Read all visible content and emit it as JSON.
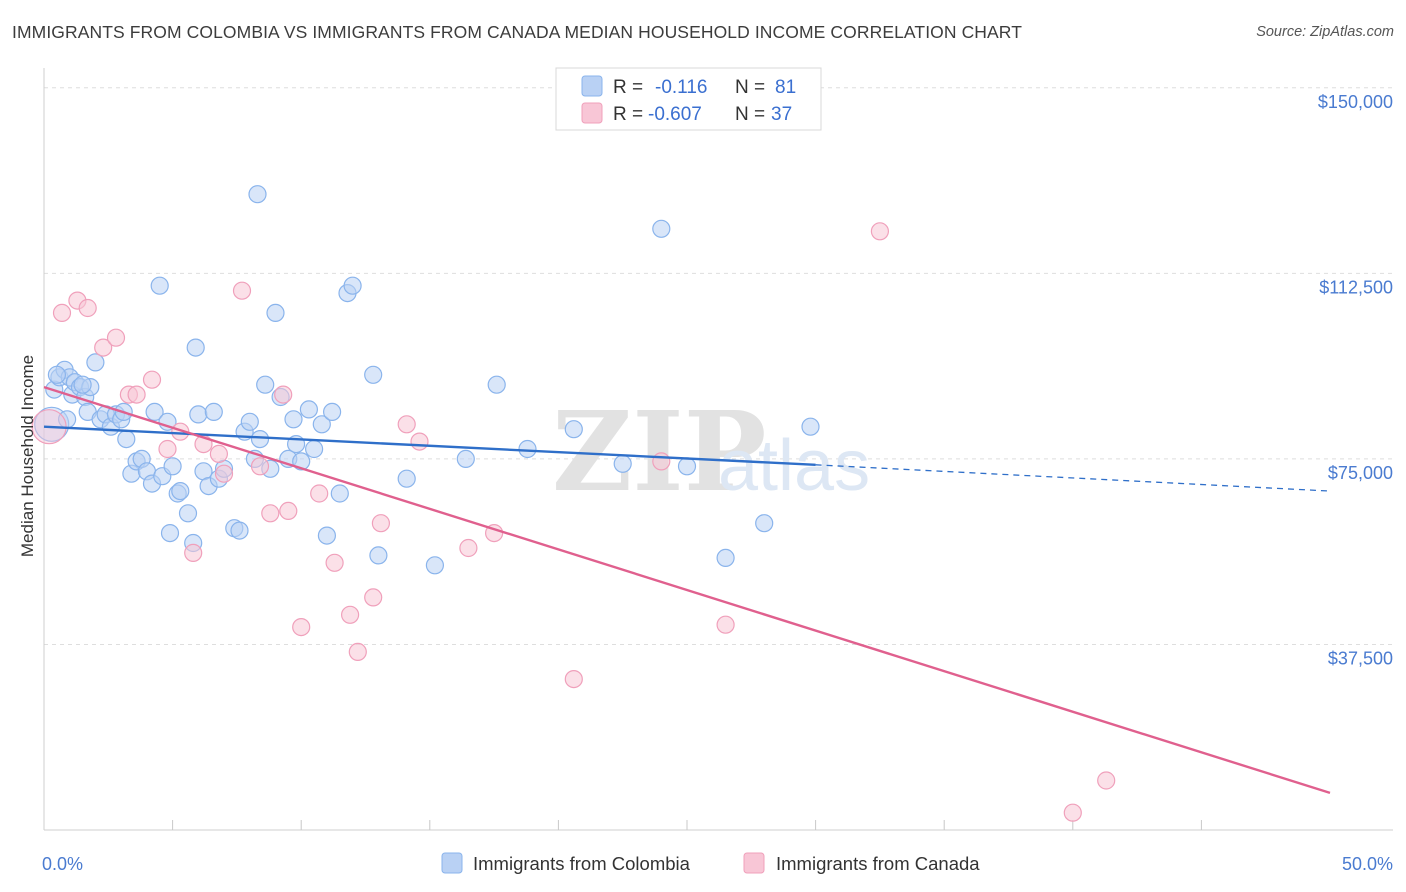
{
  "title": "IMMIGRANTS FROM COLOMBIA VS IMMIGRANTS FROM CANADA MEDIAN HOUSEHOLD INCOME CORRELATION CHART",
  "source": "Source: ZipAtlas.com",
  "watermark": {
    "zip": "ZIP",
    "atlas": "atlas"
  },
  "chart_data": {
    "type": "scatter",
    "ylabel": "Median Household Income",
    "xlim": [
      0,
      50
    ],
    "ylim": [
      0,
      154000
    ],
    "x_tick_labels": [
      {
        "x": 0,
        "label": "0.0%"
      },
      {
        "x": 50,
        "label": "50.0%"
      }
    ],
    "x_minor_ticks": [
      5,
      10,
      15,
      20,
      25,
      30,
      35,
      40,
      45
    ],
    "y_ticks": [
      {
        "value": 150000,
        "label": "$150,000"
      },
      {
        "value": 112500,
        "label": "$112,500"
      },
      {
        "value": 75000,
        "label": "$75,000"
      },
      {
        "value": 37500,
        "label": "$37,500"
      }
    ],
    "legend": [
      {
        "name": "Immigrants from Colombia",
        "r_label": "R =",
        "r": "-0.116",
        "n_label": "N =",
        "n": "81",
        "color": "#8ab4ec",
        "fill": "#b9d1f4",
        "line_color": "#2f6fc9"
      },
      {
        "name": "Immigrants from Canada",
        "r_label": "R =",
        "r": "-0.607",
        "n_label": "N =",
        "n": "37",
        "color": "#f0a0bb",
        "fill": "#f8c6d6",
        "line_color": "#e0608e"
      }
    ],
    "series": [
      {
        "name": "Immigrants from Colombia",
        "trend": {
          "x0": 0,
          "y0": 81500,
          "x1": 30,
          "y1": 73800,
          "dash_x1": 50,
          "dash_y1": 68500
        },
        "points": [
          [
            0.3,
            82000
          ],
          [
            0.4,
            89000
          ],
          [
            0.6,
            91500
          ],
          [
            0.8,
            93000
          ],
          [
            0.9,
            83000
          ],
          [
            1.0,
            91500
          ],
          [
            1.1,
            88000
          ],
          [
            1.2,
            90500
          ],
          [
            1.4,
            89500
          ],
          [
            1.6,
            87500
          ],
          [
            1.7,
            84500
          ],
          [
            1.8,
            89500
          ],
          [
            2.0,
            94500
          ],
          [
            2.2,
            83000
          ],
          [
            2.4,
            84000
          ],
          [
            2.6,
            81500
          ],
          [
            2.8,
            84000
          ],
          [
            3.0,
            83000
          ],
          [
            3.2,
            79000
          ],
          [
            3.4,
            72000
          ],
          [
            3.6,
            74500
          ],
          [
            3.8,
            75000
          ],
          [
            4.0,
            72500
          ],
          [
            4.2,
            70000
          ],
          [
            4.3,
            84500
          ],
          [
            4.6,
            71500
          ],
          [
            4.8,
            82500
          ],
          [
            4.9,
            60000
          ],
          [
            5.0,
            73500
          ],
          [
            5.2,
            68000
          ],
          [
            5.3,
            68500
          ],
          [
            5.6,
            64000
          ],
          [
            5.8,
            58000
          ],
          [
            5.9,
            97500
          ],
          [
            6.0,
            84000
          ],
          [
            6.2,
            72500
          ],
          [
            6.4,
            69500
          ],
          [
            6.6,
            84500
          ],
          [
            6.8,
            71000
          ],
          [
            7.0,
            73000
          ],
          [
            7.4,
            61000
          ],
          [
            7.6,
            60500
          ],
          [
            7.8,
            80500
          ],
          [
            8.0,
            82500
          ],
          [
            8.2,
            75000
          ],
          [
            8.4,
            79000
          ],
          [
            8.6,
            90000
          ],
          [
            8.8,
            73000
          ],
          [
            9.0,
            104500
          ],
          [
            9.2,
            87500
          ],
          [
            9.5,
            75000
          ],
          [
            9.7,
            83000
          ],
          [
            9.8,
            78000
          ],
          [
            10.0,
            74500
          ],
          [
            10.3,
            85000
          ],
          [
            10.5,
            77000
          ],
          [
            10.8,
            82000
          ],
          [
            11.0,
            59500
          ],
          [
            11.2,
            84500
          ],
          [
            11.5,
            68000
          ],
          [
            11.8,
            108500
          ],
          [
            12.0,
            110000
          ],
          [
            12.8,
            92000
          ],
          [
            13.0,
            55500
          ],
          [
            14.1,
            71000
          ],
          [
            15.2,
            53500
          ],
          [
            16.4,
            75000
          ],
          [
            17.6,
            90000
          ],
          [
            18.8,
            77000
          ],
          [
            20.6,
            81000
          ],
          [
            22.5,
            74000
          ],
          [
            24.0,
            121500
          ],
          [
            25.0,
            73500
          ],
          [
            26.5,
            55000
          ],
          [
            28.0,
            62000
          ],
          [
            29.8,
            81500
          ],
          [
            0.5,
            92000
          ],
          [
            1.5,
            90000
          ],
          [
            3.1,
            84500
          ],
          [
            4.5,
            110000
          ],
          [
            8.3,
            128500
          ]
        ]
      },
      {
        "name": "Immigrants from Canada",
        "trend": {
          "x0": 0,
          "y0": 89500,
          "x1": 50,
          "y1": 7500
        },
        "points": [
          [
            0.2,
            81500
          ],
          [
            0.7,
            104500
          ],
          [
            1.3,
            107000
          ],
          [
            1.7,
            105500
          ],
          [
            2.3,
            97500
          ],
          [
            2.8,
            99500
          ],
          [
            3.3,
            88000
          ],
          [
            3.6,
            88000
          ],
          [
            4.2,
            91000
          ],
          [
            4.8,
            77000
          ],
          [
            5.3,
            80500
          ],
          [
            5.8,
            56000
          ],
          [
            6.2,
            78000
          ],
          [
            6.8,
            76000
          ],
          [
            7.0,
            72000
          ],
          [
            7.7,
            109000
          ],
          [
            8.4,
            73500
          ],
          [
            8.8,
            64000
          ],
          [
            9.3,
            88000
          ],
          [
            9.5,
            64500
          ],
          [
            10.0,
            41000
          ],
          [
            10.7,
            68000
          ],
          [
            11.3,
            54000
          ],
          [
            11.9,
            43500
          ],
          [
            12.2,
            36000
          ],
          [
            12.8,
            47000
          ],
          [
            13.1,
            62000
          ],
          [
            14.1,
            82000
          ],
          [
            14.6,
            78500
          ],
          [
            16.5,
            57000
          ],
          [
            17.5,
            60000
          ],
          [
            20.6,
            30500
          ],
          [
            24.0,
            74500
          ],
          [
            26.5,
            41500
          ],
          [
            32.5,
            121000
          ],
          [
            40.0,
            3500
          ],
          [
            41.3,
            10000
          ]
        ]
      }
    ]
  }
}
